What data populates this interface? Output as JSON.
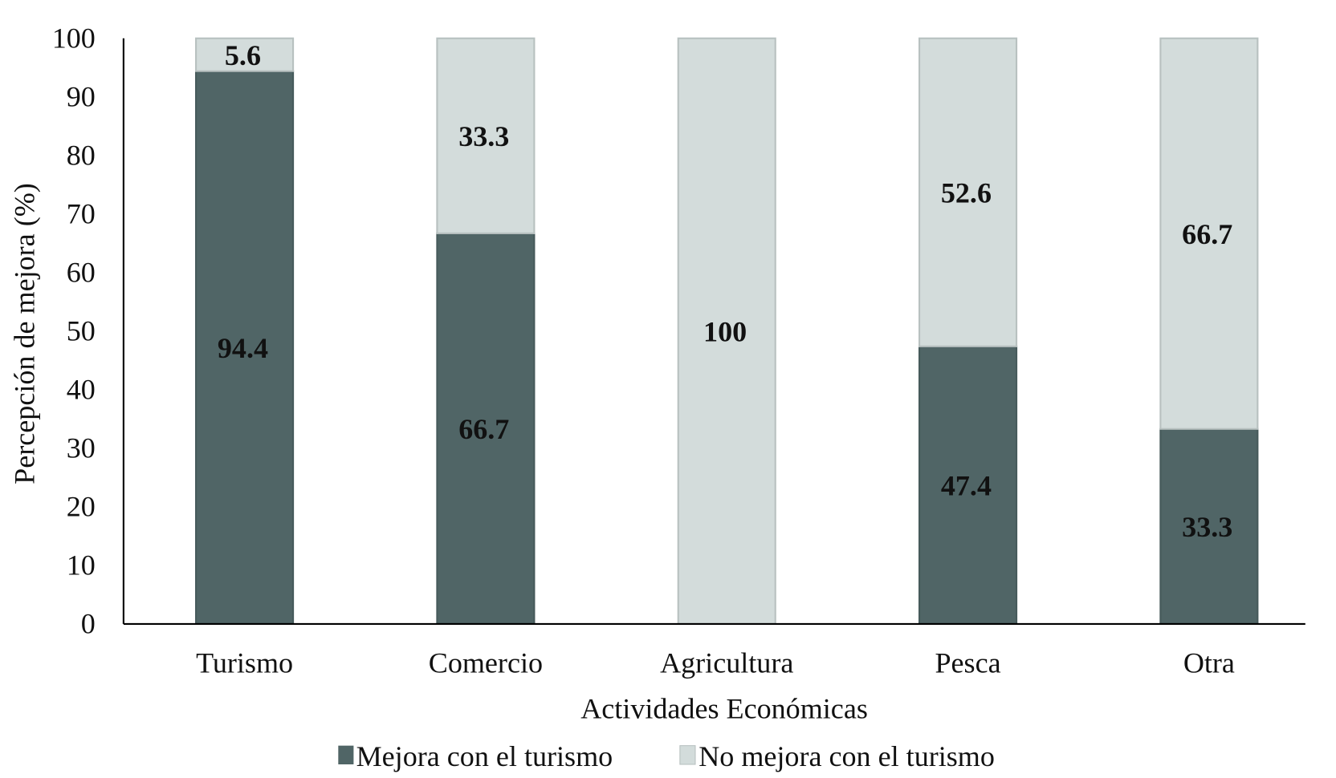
{
  "chart_data": {
    "type": "bar",
    "stacked": true,
    "categories": [
      "Turismo",
      "Comercio",
      "Agricultura",
      "Pesca",
      "Otra"
    ],
    "series": [
      {
        "name": "Mejora con el turismo",
        "values": [
          94.4,
          66.7,
          0,
          47.4,
          33.3
        ],
        "color": "#506566"
      },
      {
        "name": "No mejora con el turismo",
        "values": [
          5.6,
          33.3,
          100,
          52.6,
          66.7
        ],
        "color": "#d3dcdb"
      }
    ],
    "data_labels": [
      [
        "94.4",
        "66.7",
        "",
        "47.4",
        "33.3"
      ],
      [
        "5.6",
        "33.3",
        "100",
        "52.6",
        "66.7"
      ]
    ],
    "xlabel": "Actividades Económicas",
    "ylabel": "Percepción de mejora (%)",
    "ylim": [
      0,
      100
    ],
    "yticks": [
      "0",
      "10",
      "20",
      "30",
      "40",
      "50",
      "60",
      "70",
      "80",
      "90",
      "100"
    ],
    "grid": false,
    "legend_position": "bottom"
  }
}
